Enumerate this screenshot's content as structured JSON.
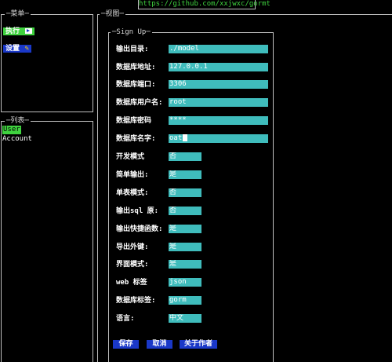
{
  "topbar": {
    "url": "https://github.com/xxjwxc/gormt"
  },
  "menu_panel": {
    "title": "菜单",
    "items": [
      {
        "label": "执行",
        "icon": "play-icon"
      },
      {
        "label": "设置",
        "icon": "wrench-icon"
      }
    ]
  },
  "list_panel": {
    "title": "列表",
    "items": [
      "User",
      "Account"
    ]
  },
  "view_panel": {
    "title": "视图",
    "form": {
      "title": "Sign Up",
      "fields": [
        {
          "label": "输出目录:",
          "value": "./model"
        },
        {
          "label": "数据库地址:",
          "value": "127.0.0.1"
        },
        {
          "label": "数据库端口:",
          "value": "3306"
        },
        {
          "label": "数据库用户名:",
          "value": "root"
        },
        {
          "label": "数据库密码",
          "value": "****"
        },
        {
          "label": "数据库名字:",
          "value": "oat"
        },
        {
          "label": "开发模式",
          "value": "否"
        },
        {
          "label": "简单输出:",
          "value": "是"
        },
        {
          "label": "单表模式:",
          "value": "否"
        },
        {
          "label": "输出sql 原:",
          "value": "否"
        },
        {
          "label": "输出快捷函数:",
          "value": "是"
        },
        {
          "label": "导出外键:",
          "value": "是"
        },
        {
          "label": "界面模式:",
          "value": "是"
        },
        {
          "label": "web 标签",
          "value": "json"
        },
        {
          "label": "数据库标签:",
          "value": "gorm"
        },
        {
          "label": "语言:",
          "value": "中文"
        }
      ],
      "buttons": {
        "save": "保存",
        "cancel": "取消",
        "about": "关于作者"
      }
    }
  },
  "colors": {
    "background": "#000000",
    "field": "#3fbcbc",
    "button": "#1a38c8",
    "highlight_green": "#3fd23f",
    "url_text": "#3fd23f"
  }
}
